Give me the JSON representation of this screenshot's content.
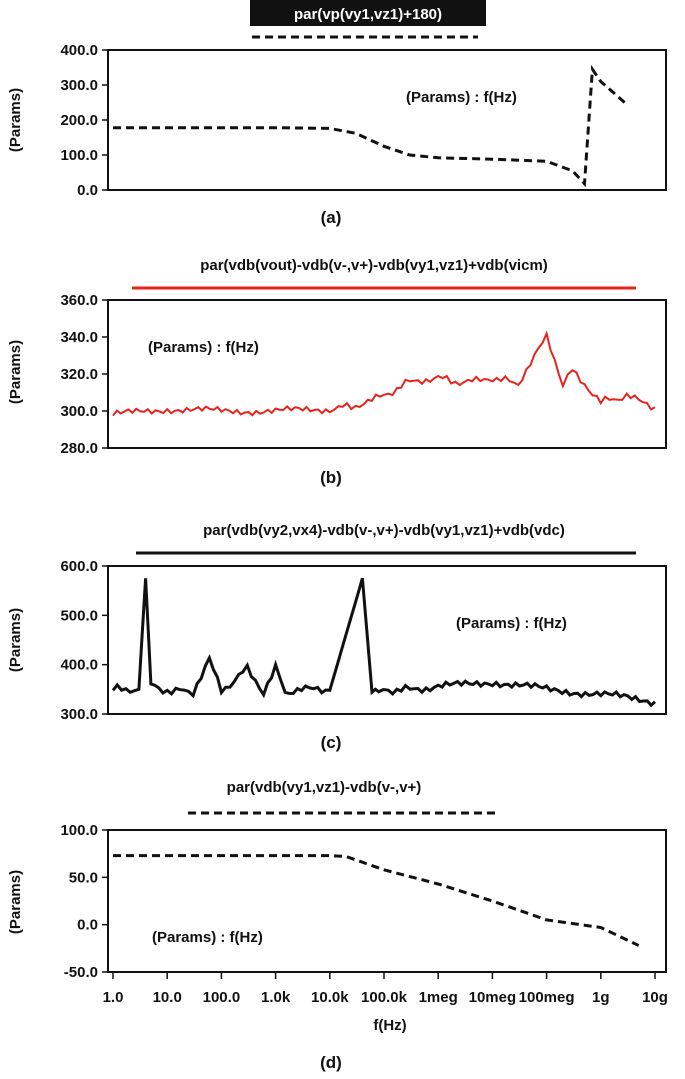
{
  "chart_data": [
    {
      "type": "line",
      "panel_caption": "(a)",
      "title": "par(vp(vy1,vz1)+180)",
      "inner_label": "(Params) : f(Hz)",
      "ylabel": "(Params)",
      "ylim": [
        0,
        400
      ],
      "yticks": [
        0,
        100,
        200,
        300,
        400
      ],
      "ytick_labels": [
        "0.0",
        "100.0",
        "200.0",
        "300.0",
        "400.0"
      ],
      "x_log_range": [
        0,
        10
      ],
      "series_color": "#111111",
      "line_style": "dashed",
      "x": [
        1,
        10,
        100,
        1000,
        10000,
        30000,
        100000,
        300000,
        1000000,
        10000000,
        100000000,
        300000000,
        500000000,
        700000000,
        1000000000,
        3000000000
      ],
      "y": [
        178,
        178,
        178,
        178,
        176,
        162,
        125,
        100,
        92,
        88,
        82,
        55,
        18,
        345,
        310,
        245
      ]
    },
    {
      "type": "line",
      "panel_caption": "(b)",
      "title": "par(vdb(vout)-vdb(v-,v+)-vdb(vy1,vz1)+vdb(vicm)",
      "inner_label": "(Params) : f(Hz)",
      "ylabel": "(Params)",
      "ylim": [
        280,
        360
      ],
      "yticks": [
        280,
        300,
        320,
        340,
        360
      ],
      "ytick_labels": [
        "280.0",
        "300.0",
        "320.0",
        "340.0",
        "360.0"
      ],
      "x_log_range": [
        0,
        10
      ],
      "series_color": "#e8231b",
      "line_style": "solid",
      "x": [
        1,
        10,
        100,
        1000,
        10000,
        30000,
        100000,
        300000,
        1000000,
        3000000,
        10000000,
        30000000,
        100000000,
        200000000,
        300000000,
        1000000000,
        3000000000,
        10000000000
      ],
      "y": [
        298,
        301,
        300,
        300,
        301,
        303,
        308,
        316,
        318,
        315,
        318,
        315,
        340,
        315,
        322,
        305,
        308,
        302
      ]
    },
    {
      "type": "line",
      "panel_caption": "(c)",
      "title": "par(vdb(vy2,vx4)-vdb(v-,v+)-vdb(vy1,vz1)+vdb(vdc)",
      "inner_label": "(Params) : f(Hz)",
      "ylabel": "(Params)",
      "ylim": [
        300,
        600
      ],
      "yticks": [
        300,
        400,
        500,
        600
      ],
      "ytick_labels": [
        "300.0",
        "400.0",
        "500.0",
        "600.0"
      ],
      "x_log_range": [
        0,
        10
      ],
      "series_color": "#111111",
      "line_style": "solid",
      "x": [
        1,
        3,
        4,
        5,
        7,
        10,
        30,
        60,
        100,
        300,
        600,
        1000,
        1500,
        3000,
        10000,
        40000,
        60000,
        80000,
        120000,
        300000,
        1000000,
        10000000,
        100000000,
        1000000000,
        10000000000
      ],
      "y": [
        350,
        350,
        575,
        360,
        350,
        348,
        345,
        410,
        345,
        392,
        345,
        395,
        345,
        350,
        348,
        575,
        345,
        345,
        348,
        350,
        355,
        365,
        350,
        340,
        325
      ]
    },
    {
      "type": "line",
      "panel_caption": "(d)",
      "title": "par(vdb(vy1,vz1)-vdb(v-,v+)",
      "inner_label": "(Params) : f(Hz)",
      "ylabel": "(Params)",
      "xlabel": "f(Hz)",
      "ylim": [
        -50,
        100
      ],
      "yticks": [
        -50,
        0,
        50,
        100
      ],
      "ytick_labels": [
        "-50.0",
        "0.0",
        "50.0",
        "100.0"
      ],
      "x_log_range": [
        0,
        10
      ],
      "xticks": [
        1,
        10,
        100,
        1000,
        10000,
        100000,
        1000000,
        10000000,
        100000000,
        1000000000,
        10000000000
      ],
      "xtick_labels": [
        "1.0",
        "10.0",
        "100.0",
        "1.0k",
        "10.0k",
        "100.0k",
        "1meg",
        "10meg",
        "100meg",
        "1g",
        "10g"
      ],
      "series_color": "#111111",
      "line_style": "dashed",
      "x": [
        1,
        10,
        100,
        1000,
        10000,
        20000,
        100000,
        1000000,
        10000000,
        100000000,
        1000000000,
        5000000000
      ],
      "y": [
        73,
        73,
        73,
        73,
        73,
        72,
        58,
        43,
        25,
        5,
        -3,
        -22
      ]
    }
  ]
}
